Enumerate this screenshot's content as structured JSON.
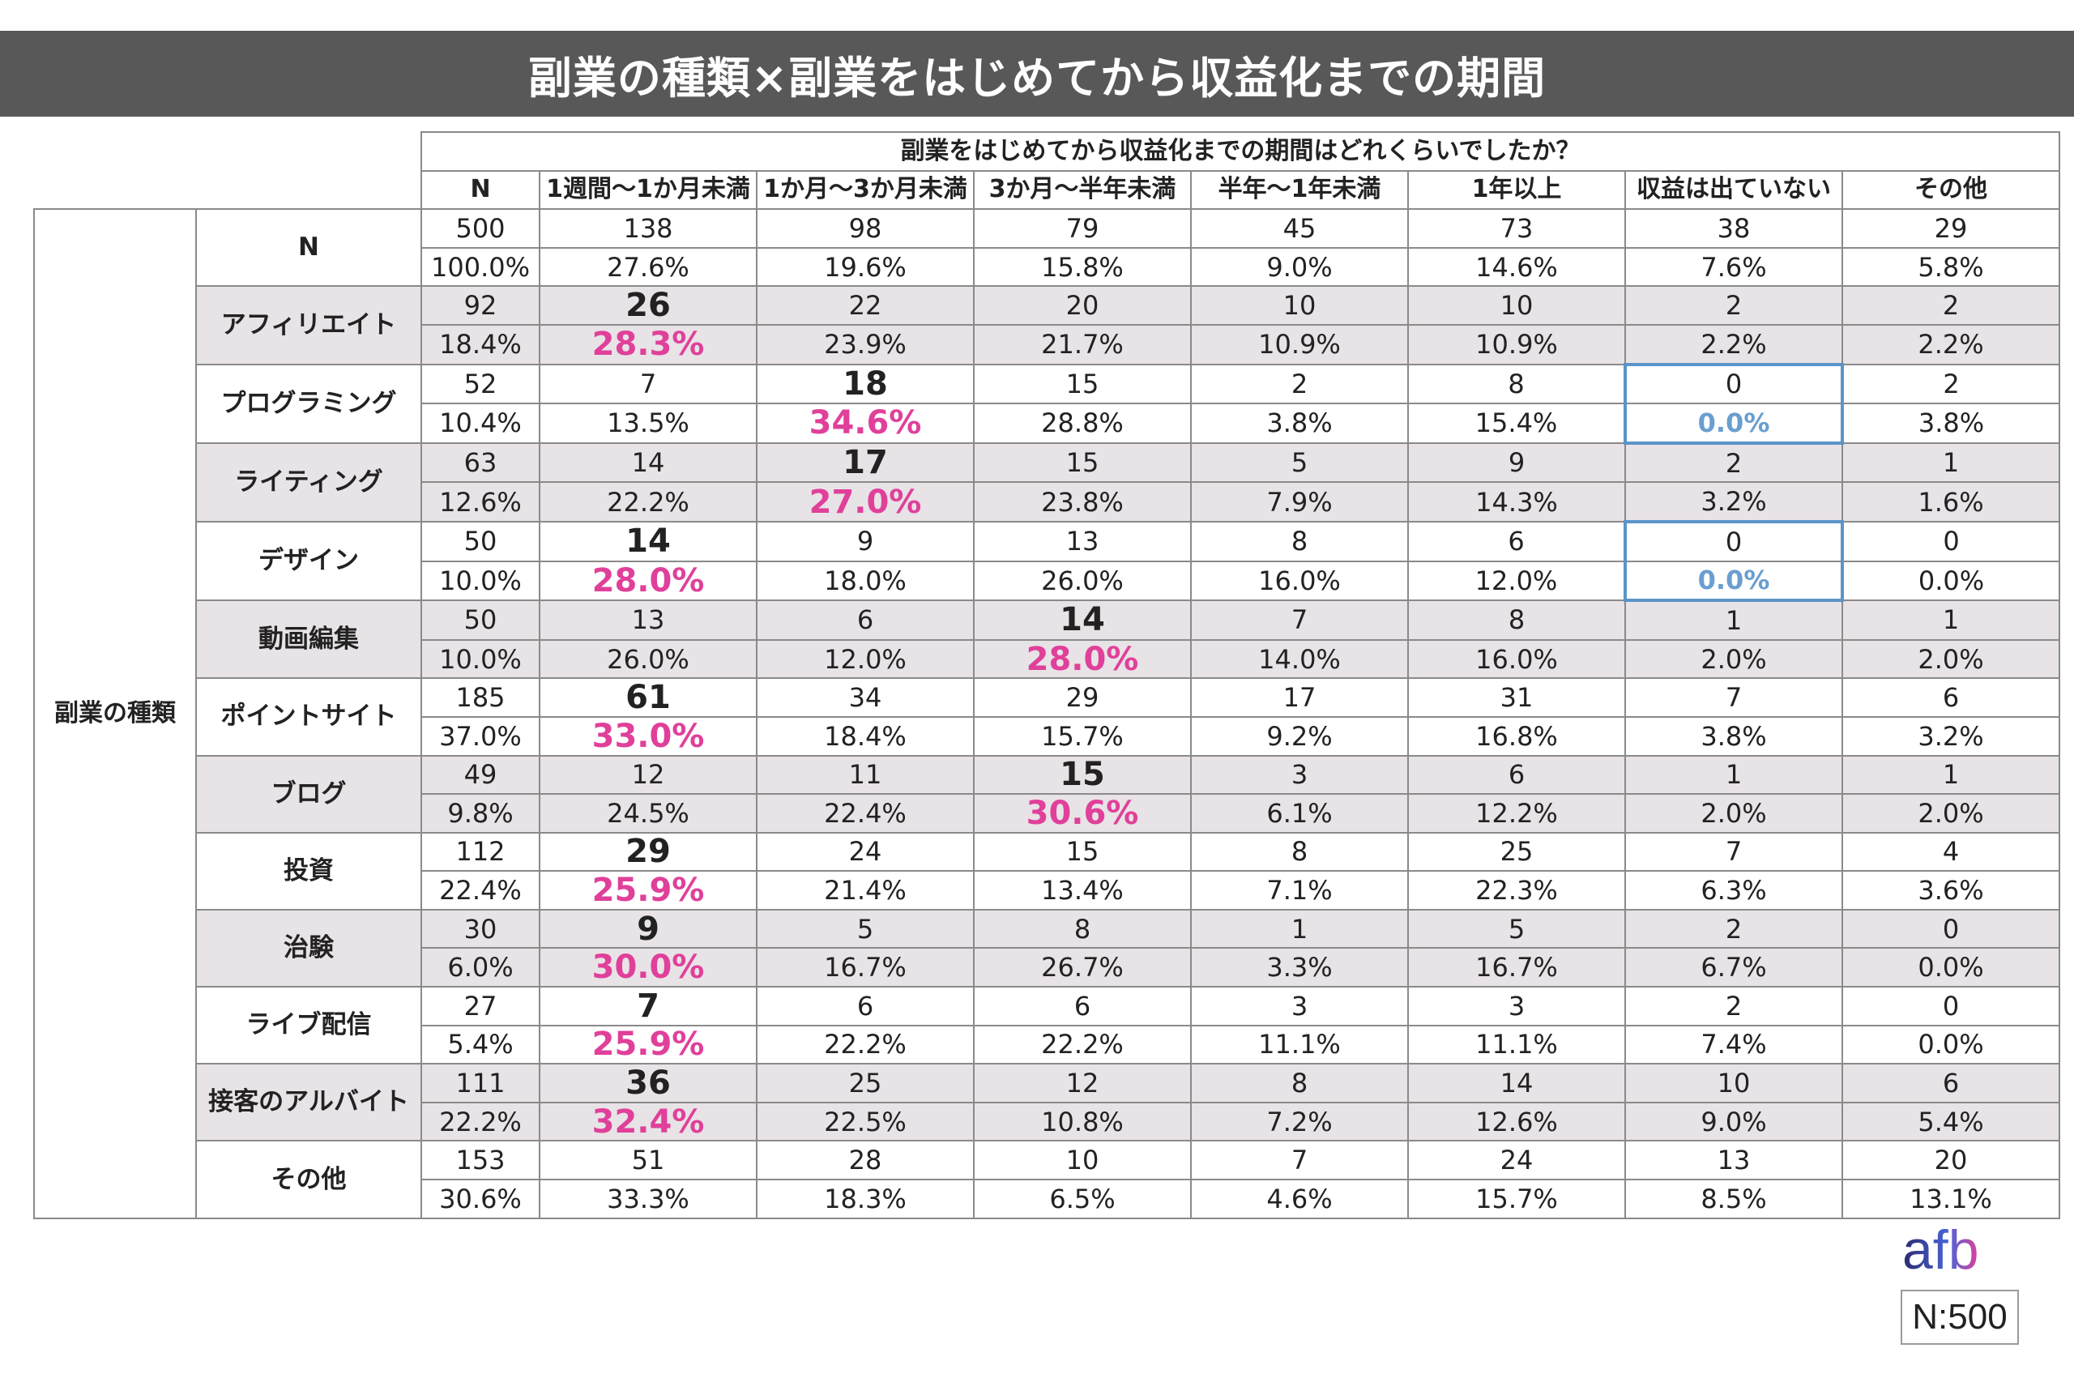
{
  "title": "副業の種類×副業をはじめてから収益化までの期間",
  "question": "副業をはじめてから収益化までの期間はどれくらいでしたか？",
  "group_label": "副業の種類",
  "columns": [
    "N",
    "1週間〜1か月未満",
    "1か月〜3か月未満",
    "3か月〜半年未満",
    "半年〜1年未満",
    "1年以上",
    "収益は出ていない",
    "その他"
  ],
  "footer": {
    "logo": "afb",
    "sample": "N:500"
  },
  "colors": {
    "title_bg": "#585858",
    "highlight_pink": "#e0409a",
    "highlight_blue": "#5b94c8",
    "row_shade": "#e8e3e6"
  },
  "chart_data": {
    "type": "table",
    "title": "副業の種類×副業をはじめてから収益化までの期間",
    "rows": [
      {
        "label": "N",
        "counts": [
          "500",
          "138",
          "98",
          "79",
          "45",
          "73",
          "38",
          "29"
        ],
        "pcts": [
          "100.0%",
          "27.6%",
          "19.6%",
          "15.8%",
          "9.0%",
          "14.6%",
          "7.6%",
          "5.8%"
        ],
        "max_col": -1,
        "zero_cols": []
      },
      {
        "label": "アフィリエイト",
        "counts": [
          "92",
          "26",
          "22",
          "20",
          "10",
          "10",
          "2",
          "2"
        ],
        "pcts": [
          "18.4%",
          "28.3%",
          "23.9%",
          "21.7%",
          "10.9%",
          "10.9%",
          "2.2%",
          "2.2%"
        ],
        "max_col": 1,
        "zero_cols": []
      },
      {
        "label": "プログラミング",
        "counts": [
          "52",
          "7",
          "18",
          "15",
          "2",
          "8",
          "0",
          "2"
        ],
        "pcts": [
          "10.4%",
          "13.5%",
          "34.6%",
          "28.8%",
          "3.8%",
          "15.4%",
          "0.0%",
          "3.8%"
        ],
        "max_col": 2,
        "zero_cols": [
          6
        ]
      },
      {
        "label": "ライティング",
        "counts": [
          "63",
          "14",
          "17",
          "15",
          "5",
          "9",
          "2",
          "1"
        ],
        "pcts": [
          "12.6%",
          "22.2%",
          "27.0%",
          "23.8%",
          "7.9%",
          "14.3%",
          "3.2%",
          "1.6%"
        ],
        "max_col": 2,
        "zero_cols": []
      },
      {
        "label": "デザイン",
        "counts": [
          "50",
          "14",
          "9",
          "13",
          "8",
          "6",
          "0",
          "0"
        ],
        "pcts": [
          "10.0%",
          "28.0%",
          "18.0%",
          "26.0%",
          "16.0%",
          "12.0%",
          "0.0%",
          "0.0%"
        ],
        "max_col": 1,
        "zero_cols": [
          6
        ]
      },
      {
        "label": "動画編集",
        "counts": [
          "50",
          "13",
          "6",
          "14",
          "7",
          "8",
          "1",
          "1"
        ],
        "pcts": [
          "10.0%",
          "26.0%",
          "12.0%",
          "28.0%",
          "14.0%",
          "16.0%",
          "2.0%",
          "2.0%"
        ],
        "max_col": 3,
        "zero_cols": []
      },
      {
        "label": "ポイントサイト",
        "counts": [
          "185",
          "61",
          "34",
          "29",
          "17",
          "31",
          "7",
          "6"
        ],
        "pcts": [
          "37.0%",
          "33.0%",
          "18.4%",
          "15.7%",
          "9.2%",
          "16.8%",
          "3.8%",
          "3.2%"
        ],
        "max_col": 1,
        "zero_cols": []
      },
      {
        "label": "ブログ",
        "counts": [
          "49",
          "12",
          "11",
          "15",
          "3",
          "6",
          "1",
          "1"
        ],
        "pcts": [
          "9.8%",
          "24.5%",
          "22.4%",
          "30.6%",
          "6.1%",
          "12.2%",
          "2.0%",
          "2.0%"
        ],
        "max_col": 3,
        "zero_cols": []
      },
      {
        "label": "投資",
        "counts": [
          "112",
          "29",
          "24",
          "15",
          "8",
          "25",
          "7",
          "4"
        ],
        "pcts": [
          "22.4%",
          "25.9%",
          "21.4%",
          "13.4%",
          "7.1%",
          "22.3%",
          "6.3%",
          "3.6%"
        ],
        "max_col": 1,
        "zero_cols": []
      },
      {
        "label": "治験",
        "counts": [
          "30",
          "9",
          "5",
          "8",
          "1",
          "5",
          "2",
          "0"
        ],
        "pcts": [
          "6.0%",
          "30.0%",
          "16.7%",
          "26.7%",
          "3.3%",
          "16.7%",
          "6.7%",
          "0.0%"
        ],
        "max_col": 1,
        "zero_cols": []
      },
      {
        "label": "ライブ配信",
        "counts": [
          "27",
          "7",
          "6",
          "6",
          "3",
          "3",
          "2",
          "0"
        ],
        "pcts": [
          "5.4%",
          "25.9%",
          "22.2%",
          "22.2%",
          "11.1%",
          "11.1%",
          "7.4%",
          "0.0%"
        ],
        "max_col": 1,
        "zero_cols": []
      },
      {
        "label": "接客のアルバイト",
        "counts": [
          "111",
          "36",
          "25",
          "12",
          "8",
          "14",
          "10",
          "6"
        ],
        "pcts": [
          "22.2%",
          "32.4%",
          "22.5%",
          "10.8%",
          "7.2%",
          "12.6%",
          "9.0%",
          "5.4%"
        ],
        "max_col": 1,
        "zero_cols": []
      },
      {
        "label": "その他",
        "counts": [
          "153",
          "51",
          "28",
          "10",
          "7",
          "24",
          "13",
          "20"
        ],
        "pcts": [
          "30.6%",
          "33.3%",
          "18.3%",
          "6.5%",
          "4.6%",
          "15.7%",
          "8.5%",
          "13.1%"
        ],
        "max_col": -1,
        "zero_cols": []
      }
    ]
  }
}
